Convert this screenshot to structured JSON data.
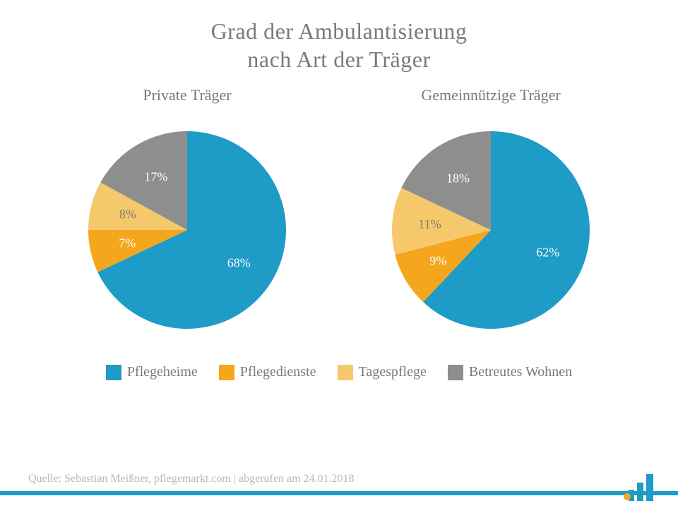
{
  "title_line1": "Grad der Ambulantisierung",
  "title_line2": "nach Art der Träger",
  "title_fontsize": 32,
  "title_color": "#7a7a7a",
  "background_color": "#ffffff",
  "charts": [
    {
      "subtitle": "Private Träger",
      "type": "pie",
      "values": [
        68,
        7,
        8,
        17
      ],
      "labels": [
        "68%",
        "7%",
        "8%",
        "17%"
      ],
      "colors": [
        "#1e9bc6",
        "#f4a61d",
        "#f5c96b",
        "#8e8e8e"
      ],
      "start_angle": 90,
      "label_fontsize": 18,
      "label_color_default": "#ffffff",
      "label_color_light": "#7a7a7a",
      "radius": 140
    },
    {
      "subtitle": "Gemeinnützige Träger",
      "type": "pie",
      "values": [
        62,
        9,
        11,
        18
      ],
      "labels": [
        "62%",
        "9%",
        "11%",
        "18%"
      ],
      "colors": [
        "#1e9bc6",
        "#f4a61d",
        "#f5c96b",
        "#8e8e8e"
      ],
      "start_angle": 90,
      "label_fontsize": 18,
      "label_color_default": "#ffffff",
      "label_color_light": "#7a7a7a",
      "radius": 140
    }
  ],
  "legend": {
    "items": [
      {
        "label": "Pflegeheime",
        "color": "#1e9bc6"
      },
      {
        "label": "Pflegedienste",
        "color": "#f4a61d"
      },
      {
        "label": "Tagespflege",
        "color": "#f5c96b"
      },
      {
        "label": "Betreutes Wohnen",
        "color": "#8e8e8e"
      }
    ],
    "fontsize": 20,
    "text_color": "#7a7a7a",
    "swatch_size": 22
  },
  "source_text": "Quelle: Sebastian Meißner, pflegemarkt.com | abgerufen am 24.01.2018",
  "source_color": "#b8b8b8",
  "source_fontsize": 16,
  "rule_color": "#1e9bc6",
  "logo_colors": {
    "bars": "#1e9bc6",
    "dot": "#f4a61d"
  }
}
